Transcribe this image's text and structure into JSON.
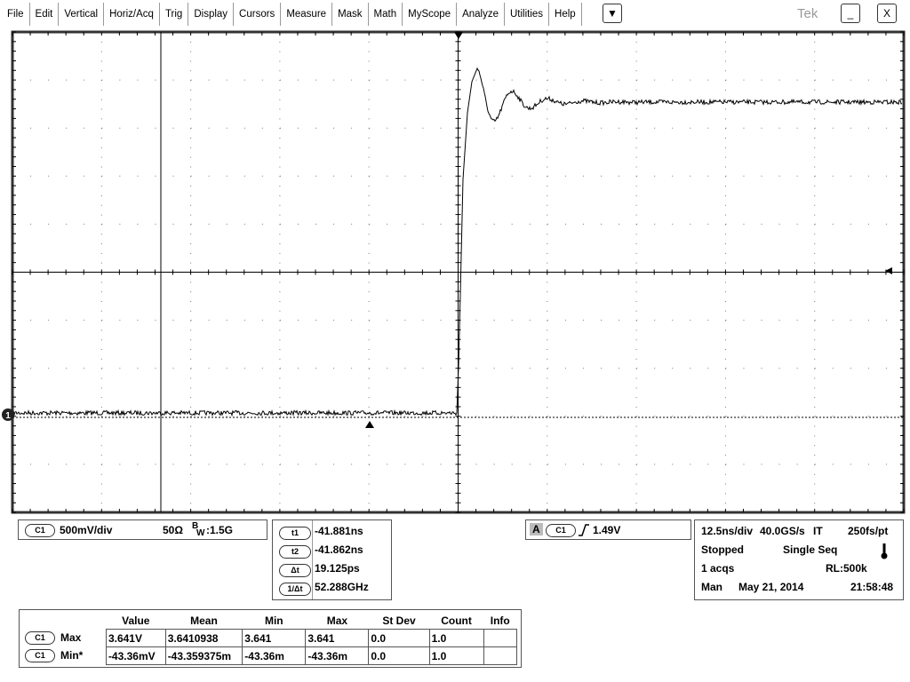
{
  "menu": [
    "File",
    "Edit",
    "Vertical",
    "Horiz/Acq",
    "Trig",
    "Display",
    "Cursors",
    "Measure",
    "Mask",
    "Math",
    "MyScope",
    "Analyze",
    "Utilities",
    "Help"
  ],
  "brand": "Tek",
  "channel_marker": "1",
  "channel_readout": {
    "badge": "C1",
    "scale": "500mV/div",
    "impedance": "50Ω",
    "bw_b": "B",
    "bw_w": "W",
    "bw_value": ":1.5G"
  },
  "cursor_readout": [
    {
      "label": "t1",
      "value": "-41.881ns"
    },
    {
      "label": "t2",
      "value": "-41.862ns"
    },
    {
      "label": "Δt",
      "value": "19.125ps"
    },
    {
      "label": "1/Δt",
      "value": "52.288GHz"
    }
  ],
  "trigger_readout": {
    "source": "A",
    "badge": "C1",
    "level": "1.49V"
  },
  "acquisition": {
    "timebase": "12.5ns/div",
    "sample_rate": "40.0GS/s",
    "mode": "IT",
    "resolution": "250fs/pt",
    "state": "Stopped",
    "sequence": "Single Seq",
    "acqs": "1 acqs",
    "record_length": "RL:500k",
    "trigger_mode": "Man",
    "date": "May 21, 2014",
    "time": "21:58:48"
  },
  "measurements": {
    "headers": [
      "Value",
      "Mean",
      "Min",
      "Max",
      "St Dev",
      "Count",
      "Info"
    ],
    "rows": [
      {
        "badge": "C1",
        "name": "Max",
        "cells": [
          "3.641V",
          "3.6410938",
          "3.641",
          "3.641",
          "0.0",
          "1.0"
        ]
      },
      {
        "badge": "C1",
        "name": "Min*",
        "cells": [
          "-43.36mV",
          "-43.359375m",
          "-43.36m",
          "-43.36m",
          "0.0",
          "1.0"
        ]
      }
    ]
  }
}
